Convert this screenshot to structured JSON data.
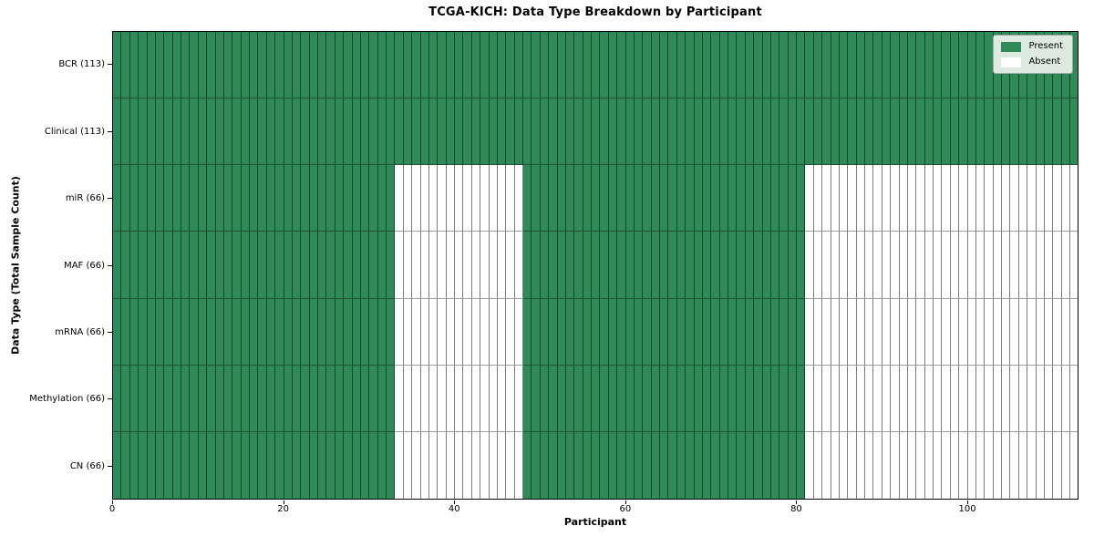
{
  "title": "TCGA-KICH: Data Type Breakdown by Participant",
  "colors": {
    "present": "#2e8b57",
    "absent": "#ffffff",
    "cell_edge": "rgba(0,0,0,0.5)",
    "frame": "#000000"
  },
  "legend": [
    {
      "label": "Present",
      "swatch": "#2e8b57"
    },
    {
      "label": "Absent",
      "swatch": "#ffffff"
    }
  ],
  "chart_data": {
    "type": "heatmap",
    "title": "TCGA-KICH: Data Type Breakdown by Participant",
    "xlabel": "Participant",
    "ylabel": "Data Type (Total Sample Count)",
    "xlim": [
      0,
      113
    ],
    "n_participants": 113,
    "x_ticks": [
      0,
      20,
      40,
      60,
      80,
      100
    ],
    "grid": "cell-edges",
    "legend_position": "upper right",
    "value_encoding": {
      "present": 1,
      "absent": 0
    },
    "rows": [
      {
        "label": "BCR (113)",
        "total": 113,
        "present_ranges": [
          [
            0,
            113
          ]
        ]
      },
      {
        "label": "Clinical (113)",
        "total": 113,
        "present_ranges": [
          [
            0,
            113
          ]
        ]
      },
      {
        "label": "miR (66)",
        "total": 66,
        "present_ranges": [
          [
            0,
            33
          ],
          [
            48,
            81
          ]
        ]
      },
      {
        "label": "MAF (66)",
        "total": 66,
        "present_ranges": [
          [
            0,
            33
          ],
          [
            48,
            81
          ]
        ]
      },
      {
        "label": "mRNA (66)",
        "total": 66,
        "present_ranges": [
          [
            0,
            33
          ],
          [
            48,
            81
          ]
        ]
      },
      {
        "label": "Methylation (66)",
        "total": 66,
        "present_ranges": [
          [
            0,
            33
          ],
          [
            48,
            81
          ]
        ]
      },
      {
        "label": "CN (66)",
        "total": 66,
        "present_ranges": [
          [
            0,
            33
          ],
          [
            48,
            81
          ]
        ]
      }
    ]
  }
}
